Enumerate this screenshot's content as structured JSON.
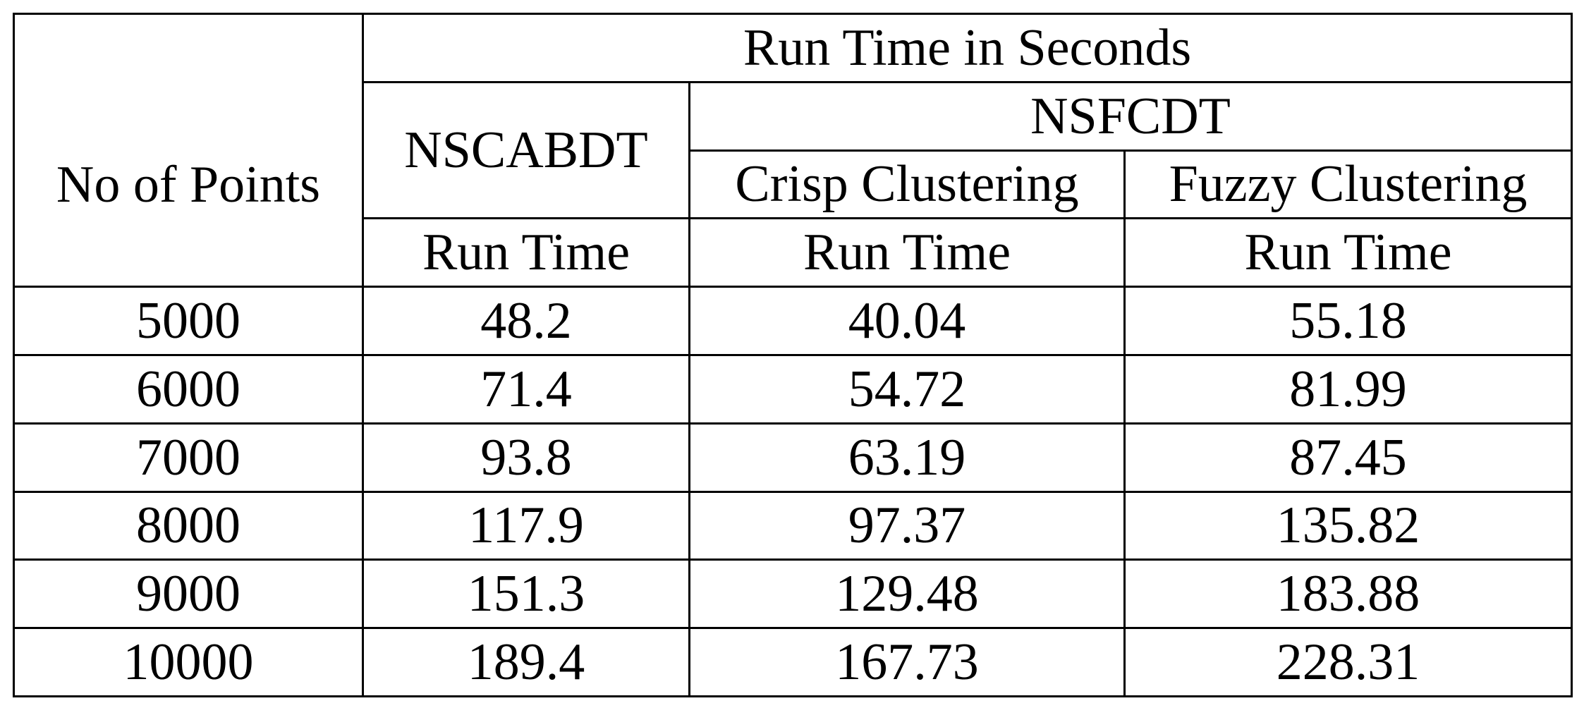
{
  "table": {
    "header": {
      "points_label": "No of Points",
      "group_label": "Run Time in Seconds",
      "method1": "NSCABDT",
      "method2": "NSFCDT",
      "sub_crisp": "Crisp Clustering",
      "sub_fuzzy": "Fuzzy Clustering",
      "run_time_1": "Run Time",
      "run_time_2": "Run Time",
      "run_time_3": "Run Time"
    },
    "rows": [
      [
        "5000",
        "48.2",
        "40.04",
        "55.18"
      ],
      [
        "6000",
        "71.4",
        "54.72",
        "81.99"
      ],
      [
        "7000",
        "93.8",
        "63.19",
        "87.45"
      ],
      [
        "8000",
        "117.9",
        "97.37",
        "135.82"
      ],
      [
        "9000",
        "151.3",
        "129.48",
        "183.88"
      ],
      [
        "10000",
        "189.4",
        "167.73",
        "228.31"
      ]
    ]
  }
}
